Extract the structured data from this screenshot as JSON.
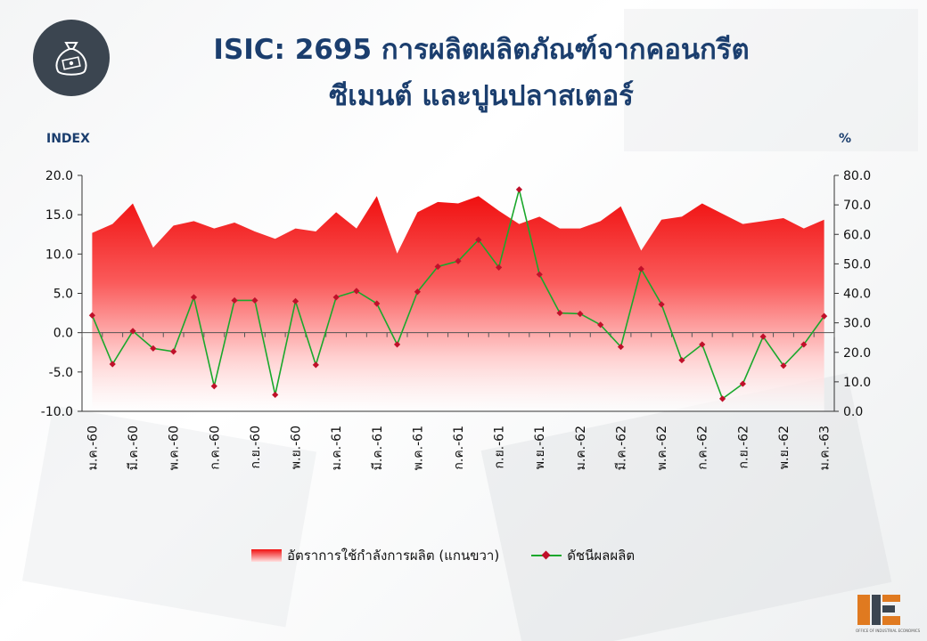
{
  "header": {
    "title_line1": "ISIC: 2695 การผลิตผลิตภัณฑ์จากคอนกรีต",
    "title_line2": "ซีเมนต์ และปูนปลาสเตอร์",
    "logo_icon": "money-bag-icon"
  },
  "footer": {
    "org_text": "OFFICE OF INDUSTRIAL ECONOMICS"
  },
  "colors": {
    "title": "#1b3e6e",
    "area_top": "#f01010",
    "line": "#1aa82c",
    "marker": "#c0102a"
  },
  "chart_data": {
    "type": "line",
    "left_axis_label": "INDEX",
    "right_axis_label": "%",
    "left_ylim": [
      -10,
      20
    ],
    "left_ticks": [
      "20.0",
      "15.0",
      "10.0",
      "5.0",
      "0.0",
      "-5.0",
      "-10.0"
    ],
    "right_ylim": [
      0,
      80
    ],
    "right_ticks": [
      "80.0",
      "70.0",
      "60.0",
      "50.0",
      "40.0",
      "30.0",
      "20.0",
      "10.0",
      "0.0"
    ],
    "x_tick_labels": [
      "ม.ค.-60",
      "มี.ค.-60",
      "พ.ค.-60",
      "ก.ค.-60",
      "ก.ย.-60",
      "พ.ย.-60",
      "ม.ค.-61",
      "มี.ค.-61",
      "พ.ค.-61",
      "ก.ค.-61",
      "ก.ย.-61",
      "พ.ย.-61",
      "ม.ค.-62",
      "มี.ค.-62",
      "พ.ค.-62",
      "ก.ค.-62",
      "ก.ย.-62",
      "พ.ย.-62",
      "ม.ค.-63"
    ],
    "n_points": 37,
    "series": [
      {
        "name": "อัตราการใช้กำลังการผลิต (แกนขวา)",
        "axis": "right",
        "style": "area",
        "values": [
          60.5,
          63.5,
          70.5,
          55.5,
          63.0,
          64.5,
          62.0,
          64.0,
          61.0,
          58.5,
          62.0,
          61.0,
          67.5,
          62.0,
          73.0,
          53.5,
          67.5,
          71.0,
          70.5,
          73.0,
          68.0,
          63.5,
          66.0,
          62.0,
          62.0,
          64.5,
          69.5,
          54.5,
          65.0,
          66.0,
          70.5,
          67.0,
          63.5,
          64.5,
          65.5,
          62.0,
          65.0
        ]
      },
      {
        "name": "ดัชนีผลผลิต",
        "axis": "left",
        "style": "line",
        "values": [
          2.2,
          -4.0,
          0.2,
          -2.0,
          -2.4,
          4.5,
          -6.8,
          4.1,
          4.1,
          -7.9,
          4.0,
          -4.1,
          4.5,
          5.3,
          3.7,
          -1.5,
          5.2,
          8.4,
          9.1,
          11.8,
          8.3,
          18.2,
          7.4,
          2.5,
          2.4,
          1.0,
          -1.8,
          8.1,
          3.6,
          -3.5,
          -1.5,
          -8.4,
          -6.5,
          -0.5,
          -4.2,
          -1.5,
          2.1
        ]
      }
    ]
  }
}
